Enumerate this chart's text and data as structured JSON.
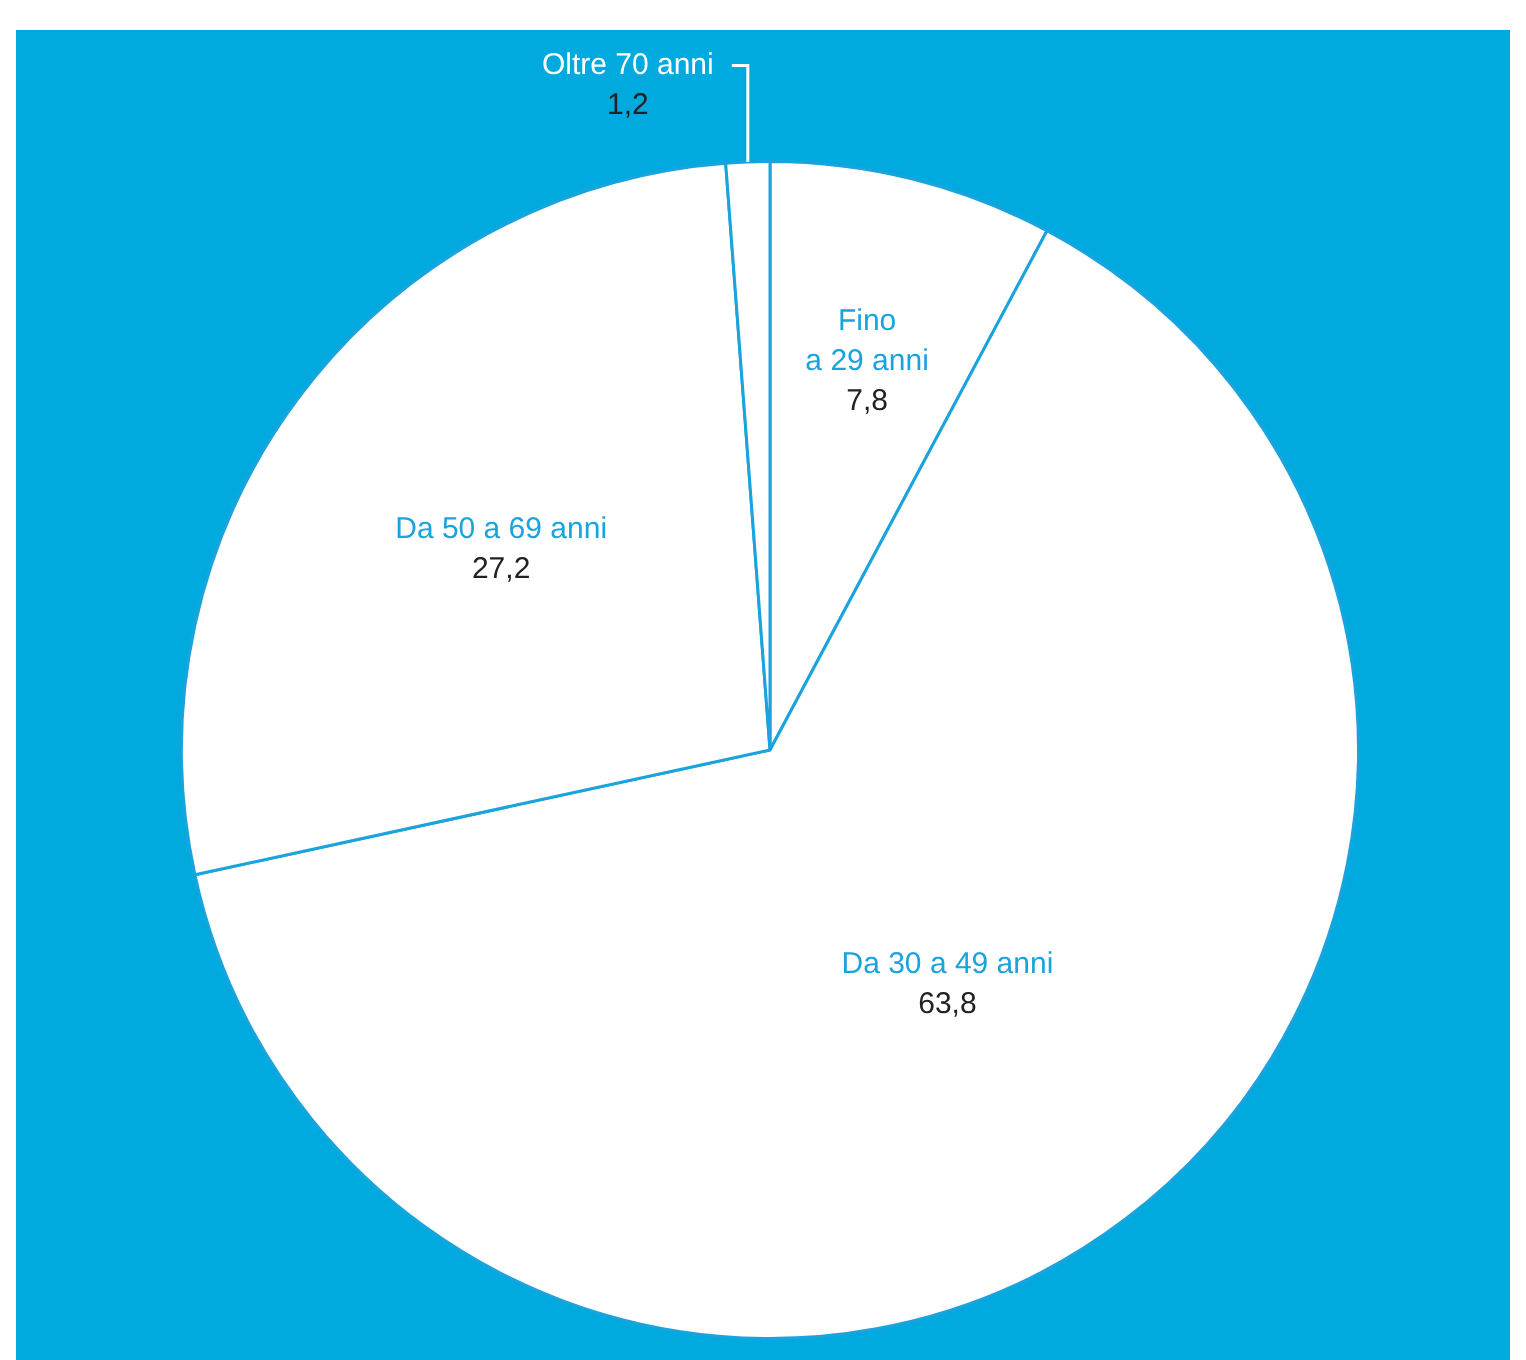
{
  "chart_data": {
    "type": "pie",
    "categories": [
      "Fino a 29 anni",
      "Da 30 a 49 anni",
      "Da 50 a 69 anni",
      "Oltre 70 anni"
    ],
    "values": [
      7.8,
      63.8,
      27.2,
      1.2
    ],
    "colors": [
      "#ffffff",
      "#ffffff",
      "#ffffff",
      "#ffffff"
    ],
    "value_labels": [
      "7,8",
      "63,8",
      "27,2",
      "1,2"
    ],
    "legend": false
  }
}
